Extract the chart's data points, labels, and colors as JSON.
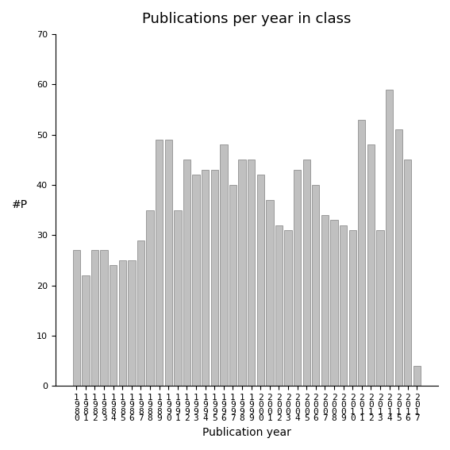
{
  "years": [
    "1980",
    "1981",
    "1982",
    "1983",
    "1984",
    "1985",
    "1986",
    "1987",
    "1988",
    "1989",
    "1990",
    "1991",
    "1992",
    "1993",
    "1994",
    "1995",
    "1996",
    "1997",
    "1998",
    "1999",
    "2000",
    "2001",
    "2002",
    "2003",
    "2004",
    "2005",
    "2006",
    "2007",
    "2008",
    "2009",
    "2010",
    "2011",
    "2012",
    "2013",
    "2014",
    "2015",
    "2016",
    "2017"
  ],
  "values": [
    27,
    22,
    27,
    27,
    24,
    25,
    25,
    29,
    35,
    49,
    49,
    35,
    45,
    42,
    43,
    43,
    48,
    40,
    45,
    45,
    42,
    37,
    32,
    31,
    43,
    45,
    40,
    34,
    33,
    32,
    31,
    53,
    48,
    31,
    59,
    51,
    45,
    4
  ],
  "title": "Publications per year in class",
  "xlabel": "Publication year",
  "ylabel": "#P",
  "ylim": [
    0,
    70
  ],
  "yticks": [
    0,
    10,
    20,
    30,
    40,
    50,
    60,
    70
  ],
  "bar_color": "#c0c0c0",
  "bar_edge_color": "#808080",
  "bg_color": "#ffffff",
  "title_fontsize": 13,
  "label_fontsize": 10,
  "tick_fontsize": 8
}
